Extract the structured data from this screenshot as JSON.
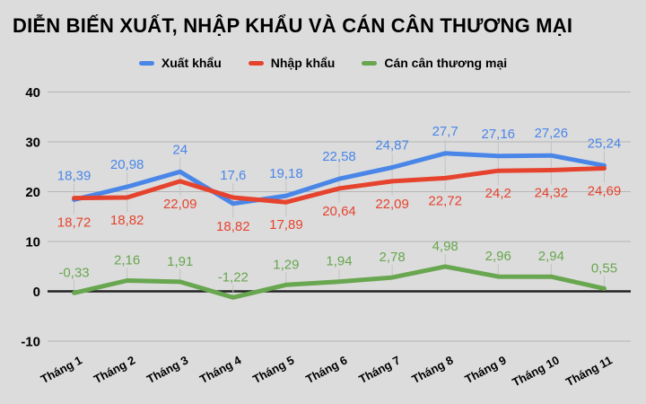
{
  "title": "DIỄN BIẾN XUẤT, NHẬP KHẨU VÀ CÁN CÂN THƯƠNG MẠI",
  "colors": {
    "background": "#dcdcdc",
    "gridline": "#b5b5b5",
    "zero_line": "#212121",
    "leader_line": "#c3c3c3",
    "text": "#000000"
  },
  "chart_data": {
    "type": "line",
    "title": "DIỄN BIẾN XUẤT, NHẬP KHẨU VÀ CÁN CÂN THƯƠNG MẠI",
    "categories": [
      "Tháng 1",
      "Tháng 2",
      "Tháng 3",
      "Tháng 4",
      "Tháng 5",
      "Tháng 6",
      "Tháng 7",
      "Tháng 8",
      "Tháng 9",
      "Tháng 10",
      "Tháng 11"
    ],
    "series": [
      {
        "name": "Xuất khẩu",
        "color": "#4a86e8",
        "values": [
          18.39,
          20.98,
          24,
          17.6,
          19.18,
          22.58,
          24.87,
          27.7,
          27.16,
          27.26,
          25.24
        ],
        "labels": [
          "18,39",
          "20,98",
          "24",
          "17,6",
          "19,18",
          "22,58",
          "24,87",
          "27,7",
          "27,16",
          "27,26",
          "25,24"
        ]
      },
      {
        "name": "Nhập khẩu",
        "color": "#e6432e",
        "values": [
          18.72,
          18.82,
          22.09,
          18.82,
          17.89,
          20.64,
          22.09,
          22.72,
          24.2,
          24.32,
          24.69
        ],
        "labels": [
          "18,72",
          "18,82",
          "22,09",
          "18,82",
          "17,89",
          "20,64",
          "22,09",
          "22,72",
          "24,2",
          "24,32",
          "24,69"
        ]
      },
      {
        "name": "Cán cân thương mại",
        "color": "#68a64f",
        "values": [
          -0.33,
          2.16,
          1.91,
          -1.22,
          1.29,
          1.94,
          2.78,
          4.98,
          2.96,
          2.94,
          0.55
        ],
        "labels": [
          "-0,33",
          "2,16",
          "1,91",
          "-1,22",
          "1,29",
          "1,94",
          "2,78",
          "4,98",
          "2,96",
          "2,94",
          "0,55"
        ]
      }
    ],
    "y_axis": {
      "min": -10,
      "max": 40,
      "ticks": [
        40,
        30,
        20,
        10,
        0,
        -10
      ],
      "tick_labels": [
        "40",
        "30",
        "20",
        "10",
        "0",
        "-10"
      ]
    },
    "legend_position": "top",
    "grid": true
  }
}
